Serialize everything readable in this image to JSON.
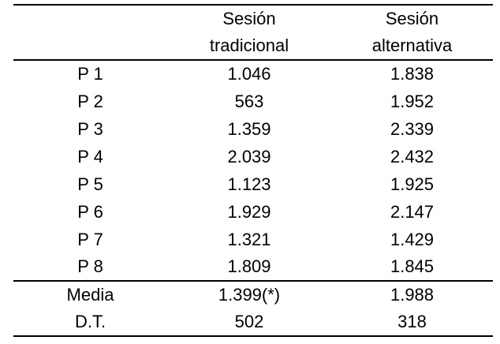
{
  "table": {
    "header": {
      "label_col": "",
      "col_tradicional": {
        "line1": "Sesión",
        "line2": "tradicional"
      },
      "col_alternativa": {
        "line1": "Sesión",
        "line2": "alternativa"
      }
    },
    "rows": [
      {
        "label": "P 1",
        "tradicional": "1.046",
        "alternativa": "1.838"
      },
      {
        "label": "P 2",
        "tradicional": "563",
        "alternativa": "1.952"
      },
      {
        "label": "P 3",
        "tradicional": "1.359",
        "alternativa": "2.339"
      },
      {
        "label": "P 4",
        "tradicional": "2.039",
        "alternativa": "2.432"
      },
      {
        "label": "P 5",
        "tradicional": "1.123",
        "alternativa": "1.925"
      },
      {
        "label": "P 6",
        "tradicional": "1.929",
        "alternativa": "2.147"
      },
      {
        "label": "P 7",
        "tradicional": "1.321",
        "alternativa": "1.429"
      },
      {
        "label": "P 8",
        "tradicional": "1.809",
        "alternativa": "1.845"
      }
    ],
    "summary": [
      {
        "label": "Media",
        "tradicional": "1.399(*)",
        "alternativa": "1.988"
      },
      {
        "label": "D.T.",
        "tradicional": "502",
        "alternativa": "318"
      }
    ],
    "colors": {
      "text": "#000000",
      "rules": "#000000",
      "background": "#ffffff"
    }
  }
}
